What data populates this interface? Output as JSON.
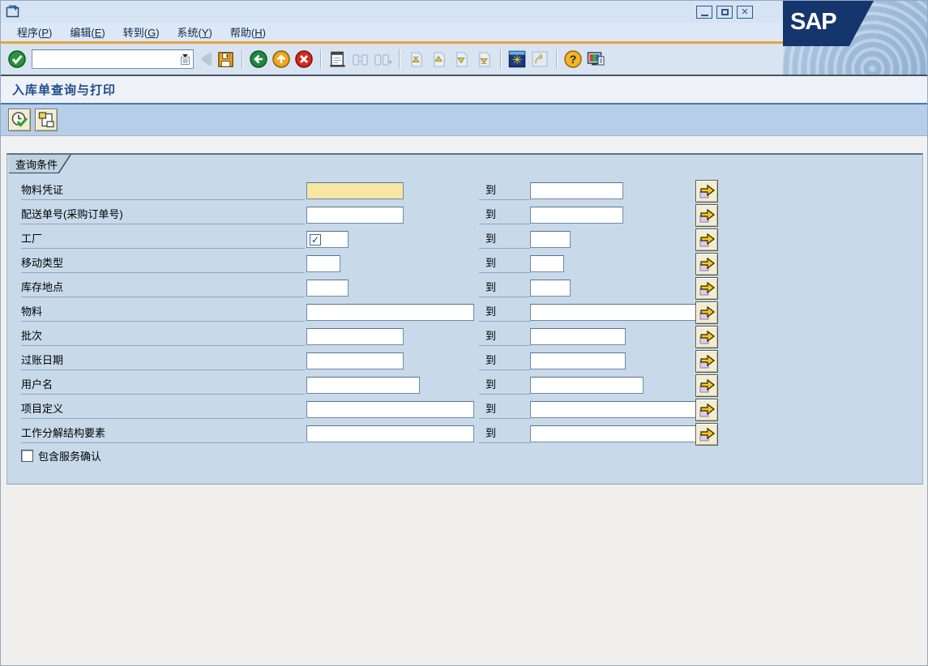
{
  "window": {
    "title_bar_controls": [
      "minimize",
      "maximize",
      "close"
    ]
  },
  "logo": {
    "brand": "SAP"
  },
  "menubar": {
    "items": [
      {
        "text": "程序",
        "mnemonic": "P"
      },
      {
        "text": "编辑",
        "mnemonic": "E"
      },
      {
        "text": "转到",
        "mnemonic": "G"
      },
      {
        "text": "系统",
        "mnemonic": "Y"
      },
      {
        "text": "帮助",
        "mnemonic": "H"
      }
    ]
  },
  "toolbar": {
    "command_field": {
      "value": "",
      "placeholder": ""
    },
    "icons": [
      "enter",
      "save",
      "back",
      "exit",
      "cancel",
      "print",
      "find",
      "find-next",
      "first-page",
      "previous-page",
      "next-page",
      "last-page",
      "new-session",
      "create-shortcut",
      "help",
      "customize-local-layout"
    ]
  },
  "screen": {
    "title": "入库单查询与打印"
  },
  "app_toolbar": {
    "buttons": [
      {
        "name": "execute"
      },
      {
        "name": "get-variant"
      }
    ]
  },
  "form": {
    "group_title": "查询条件",
    "to_label": "到",
    "rows": [
      {
        "label": "物料凭证",
        "from_value": "",
        "to_value": "",
        "highlighted": true
      },
      {
        "label": "配送单号(采购订单号)",
        "from_value": "",
        "to_value": ""
      },
      {
        "label": "工厂",
        "from_value": "",
        "to_value": "",
        "check_icon": true
      },
      {
        "label": "移动类型",
        "from_value": "",
        "to_value": ""
      },
      {
        "label": "库存地点",
        "from_value": "",
        "to_value": ""
      },
      {
        "label": "物料",
        "from_value": "",
        "to_value": ""
      },
      {
        "label": "批次",
        "from_value": "",
        "to_value": ""
      },
      {
        "label": "过账日期",
        "from_value": "",
        "to_value": ""
      },
      {
        "label": "用户名",
        "from_value": "",
        "to_value": ""
      },
      {
        "label": "项目定义",
        "from_value": "",
        "to_value": ""
      },
      {
        "label": "工作分解结构要素",
        "from_value": "",
        "to_value": ""
      }
    ],
    "checkbox": {
      "label": "包含服务确认",
      "checked": false
    }
  },
  "colors": {
    "accent_orange": "#e8a33c",
    "panel_blue": "#c8d9ea",
    "highlight_yellow": "#f7e7a3",
    "brand_navy": "#15356d"
  }
}
